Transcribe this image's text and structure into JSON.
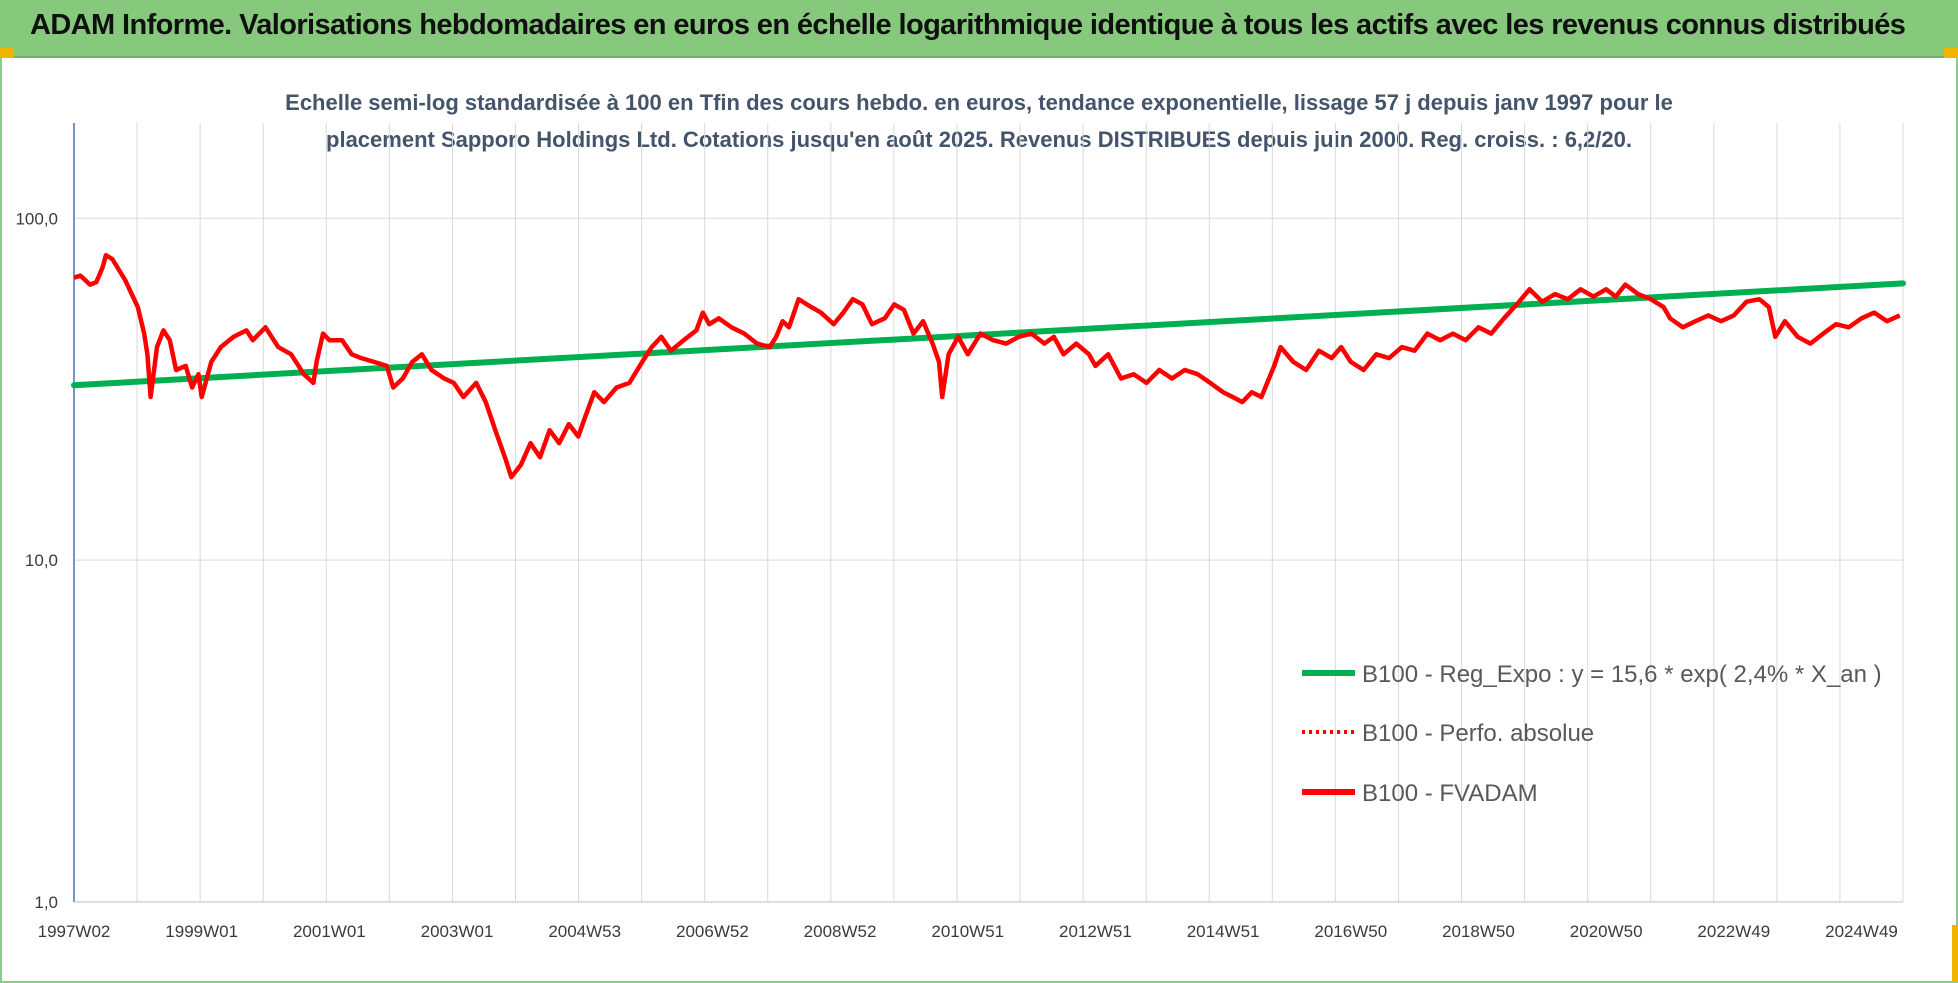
{
  "banner": {
    "title": "ADAM Informe. Valorisations hebdomadaires en euros en échelle logarithmique identique à tous les actifs avec les revenus connus distribués"
  },
  "colors": {
    "banner_bg": "#86c97c",
    "trend": "#00b050",
    "fvadam": "#ff0000",
    "perfo": "#ff0000",
    "grid": "#d9d9d9",
    "corner_marks": "#f0b400"
  },
  "chart_data": {
    "type": "line",
    "title_lines": [
      "Echelle semi-log standardisée à 100 en Tfin des cours hebdo. en euros, tendance exponentielle, lissage 57 j depuis janv 1997 pour le",
      "placement Sapporo Holdings Ltd. Cotations jusqu'en août 2025. Revenus DISTRIBUES depuis juin 2000. Reg. croiss. : 6,2/20."
    ],
    "y_scale": "log",
    "ylim": [
      1,
      190
    ],
    "y_ticks": [
      {
        "value": 1,
        "label": "1,0"
      },
      {
        "value": 10,
        "label": "10,0"
      },
      {
        "value": 100,
        "label": "100,0"
      }
    ],
    "xlim": [
      1997.0,
      2025.65
    ],
    "x_ticks": [
      {
        "x": 1997.0,
        "label": "1997W02"
      },
      {
        "x": 1999.0,
        "label": "1999W01"
      },
      {
        "x": 2001.0,
        "label": "2001W01"
      },
      {
        "x": 2003.0,
        "label": "2003W01"
      },
      {
        "x": 2005.0,
        "label": "2004W53"
      },
      {
        "x": 2007.0,
        "label": "2006W52"
      },
      {
        "x": 2009.0,
        "label": "2008W52"
      },
      {
        "x": 2011.0,
        "label": "2010W51"
      },
      {
        "x": 2013.0,
        "label": "2012W51"
      },
      {
        "x": 2015.0,
        "label": "2014W51"
      },
      {
        "x": 2017.0,
        "label": "2016W50"
      },
      {
        "x": 2019.0,
        "label": "2018W50"
      },
      {
        "x": 2021.0,
        "label": "2020W50"
      },
      {
        "x": 2023.0,
        "label": "2022W49"
      },
      {
        "x": 2025.0,
        "label": "2024W49"
      }
    ],
    "grid": "vertical and horizontal",
    "legend_position": "right",
    "series": [
      {
        "name": "B100 - Reg_Expo : y = 15,6 * exp( 2,4% *  X_an )",
        "style": "solid",
        "color": "#00b050",
        "points": [
          [
            1997.0,
            32.5
          ],
          [
            2025.65,
            64.5
          ]
        ]
      },
      {
        "name": "B100 - Perfo. absolue",
        "style": "dotted",
        "color": "#ff0000",
        "points": []
      },
      {
        "name": "B100 - FVADAM",
        "style": "solid",
        "color": "#ff0000",
        "points": [
          [
            1997.0,
            67
          ],
          [
            1997.1,
            68
          ],
          [
            1997.25,
            64
          ],
          [
            1997.35,
            65
          ],
          [
            1997.45,
            72
          ],
          [
            1997.5,
            78
          ],
          [
            1997.6,
            76
          ],
          [
            1997.8,
            66
          ],
          [
            1998.0,
            55
          ],
          [
            1998.1,
            46
          ],
          [
            1998.15,
            40
          ],
          [
            1998.2,
            30
          ],
          [
            1998.3,
            42
          ],
          [
            1998.4,
            47
          ],
          [
            1998.5,
            44
          ],
          [
            1998.6,
            36
          ],
          [
            1998.75,
            37
          ],
          [
            1998.85,
            32
          ],
          [
            1998.95,
            35
          ],
          [
            1999.0,
            30
          ],
          [
            1999.15,
            38
          ],
          [
            1999.3,
            42
          ],
          [
            1999.5,
            45
          ],
          [
            1999.7,
            47
          ],
          [
            1999.8,
            44
          ],
          [
            2000.0,
            48
          ],
          [
            2000.2,
            42
          ],
          [
            2000.4,
            40
          ],
          [
            2000.6,
            35
          ],
          [
            2000.75,
            33
          ],
          [
            2000.8,
            38
          ],
          [
            2000.9,
            46
          ],
          [
            2001.0,
            44
          ],
          [
            2001.2,
            44
          ],
          [
            2001.35,
            40
          ],
          [
            2001.5,
            39
          ],
          [
            2001.7,
            38
          ],
          [
            2001.9,
            37
          ],
          [
            2002.0,
            32
          ],
          [
            2002.15,
            34
          ],
          [
            2002.3,
            38
          ],
          [
            2002.45,
            40
          ],
          [
            2002.6,
            36
          ],
          [
            2002.8,
            34
          ],
          [
            2002.95,
            33
          ],
          [
            2003.1,
            30
          ],
          [
            2003.3,
            33
          ],
          [
            2003.45,
            29
          ],
          [
            2003.6,
            24
          ],
          [
            2003.75,
            20
          ],
          [
            2003.85,
            17.5
          ],
          [
            2004.0,
            19
          ],
          [
            2004.15,
            22
          ],
          [
            2004.3,
            20
          ],
          [
            2004.45,
            24
          ],
          [
            2004.6,
            22
          ],
          [
            2004.75,
            25
          ],
          [
            2004.9,
            23
          ],
          [
            2005.0,
            26
          ],
          [
            2005.15,
            31
          ],
          [
            2005.3,
            29
          ],
          [
            2005.5,
            32
          ],
          [
            2005.7,
            33
          ],
          [
            2005.9,
            38
          ],
          [
            2006.05,
            42
          ],
          [
            2006.2,
            45
          ],
          [
            2006.35,
            41
          ],
          [
            2006.55,
            44
          ],
          [
            2006.75,
            47
          ],
          [
            2006.85,
            53
          ],
          [
            2006.95,
            49
          ],
          [
            2007.1,
            51
          ],
          [
            2007.3,
            48
          ],
          [
            2007.5,
            46
          ],
          [
            2007.7,
            43
          ],
          [
            2007.9,
            42
          ],
          [
            2008.0,
            45
          ],
          [
            2008.1,
            50
          ],
          [
            2008.2,
            48
          ],
          [
            2008.35,
            58
          ],
          [
            2008.55,
            55
          ],
          [
            2008.7,
            53
          ],
          [
            2008.9,
            49
          ],
          [
            2009.05,
            53
          ],
          [
            2009.2,
            58
          ],
          [
            2009.35,
            56
          ],
          [
            2009.5,
            49
          ],
          [
            2009.7,
            51
          ],
          [
            2009.85,
            56
          ],
          [
            2010.0,
            54
          ],
          [
            2010.15,
            46
          ],
          [
            2010.3,
            50
          ],
          [
            2010.45,
            43
          ],
          [
            2010.55,
            38
          ],
          [
            2010.6,
            30
          ],
          [
            2010.7,
            40
          ],
          [
            2010.85,
            45
          ],
          [
            2011.0,
            40
          ],
          [
            2011.2,
            46
          ],
          [
            2011.4,
            44
          ],
          [
            2011.6,
            43
          ],
          [
            2011.8,
            45
          ],
          [
            2012.0,
            46
          ],
          [
            2012.2,
            43
          ],
          [
            2012.35,
            45
          ],
          [
            2012.5,
            40
          ],
          [
            2012.7,
            43
          ],
          [
            2012.9,
            40
          ],
          [
            2013.0,
            37
          ],
          [
            2013.2,
            40
          ],
          [
            2013.4,
            34
          ],
          [
            2013.6,
            35
          ],
          [
            2013.8,
            33
          ],
          [
            2014.0,
            36
          ],
          [
            2014.2,
            34
          ],
          [
            2014.4,
            36
          ],
          [
            2014.6,
            35
          ],
          [
            2014.8,
            33
          ],
          [
            2015.0,
            31
          ],
          [
            2015.15,
            30
          ],
          [
            2015.3,
            29
          ],
          [
            2015.45,
            31
          ],
          [
            2015.6,
            30
          ],
          [
            2015.8,
            37
          ],
          [
            2015.9,
            42
          ],
          [
            2016.1,
            38
          ],
          [
            2016.3,
            36
          ],
          [
            2016.5,
            41
          ],
          [
            2016.7,
            39
          ],
          [
            2016.85,
            42
          ],
          [
            2017.0,
            38
          ],
          [
            2017.2,
            36
          ],
          [
            2017.4,
            40
          ],
          [
            2017.6,
            39
          ],
          [
            2017.8,
            42
          ],
          [
            2018.0,
            41
          ],
          [
            2018.2,
            46
          ],
          [
            2018.4,
            44
          ],
          [
            2018.6,
            46
          ],
          [
            2018.8,
            44
          ],
          [
            2019.0,
            48
          ],
          [
            2019.2,
            46
          ],
          [
            2019.4,
            51
          ],
          [
            2019.6,
            56
          ],
          [
            2019.8,
            62
          ],
          [
            2020.0,
            57
          ],
          [
            2020.2,
            60
          ],
          [
            2020.4,
            58
          ],
          [
            2020.6,
            62
          ],
          [
            2020.8,
            59
          ],
          [
            2021.0,
            62
          ],
          [
            2021.15,
            59
          ],
          [
            2021.3,
            64
          ],
          [
            2021.5,
            60
          ],
          [
            2021.7,
            58
          ],
          [
            2021.9,
            55
          ],
          [
            2022.0,
            51
          ],
          [
            2022.2,
            48
          ],
          [
            2022.4,
            50
          ],
          [
            2022.6,
            52
          ],
          [
            2022.8,
            50
          ],
          [
            2023.0,
            52
          ],
          [
            2023.2,
            57
          ],
          [
            2023.4,
            58
          ],
          [
            2023.55,
            55
          ],
          [
            2023.65,
            45
          ],
          [
            2023.8,
            50
          ],
          [
            2024.0,
            45
          ],
          [
            2024.2,
            43
          ],
          [
            2024.4,
            46
          ],
          [
            2024.6,
            49
          ],
          [
            2024.8,
            48
          ],
          [
            2025.0,
            51
          ],
          [
            2025.2,
            53
          ],
          [
            2025.4,
            50
          ],
          [
            2025.6,
            52
          ]
        ]
      }
    ]
  }
}
